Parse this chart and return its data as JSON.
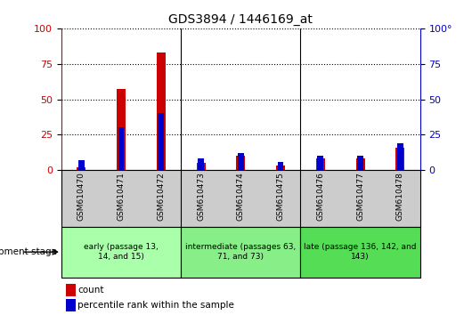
{
  "title": "GDS3894 / 1446169_at",
  "samples": [
    "GSM610470",
    "GSM610471",
    "GSM610472",
    "GSM610473",
    "GSM610474",
    "GSM610475",
    "GSM610476",
    "GSM610477",
    "GSM610478"
  ],
  "count_values": [
    2,
    57,
    83,
    5,
    10,
    3,
    8,
    8,
    16
  ],
  "percentile_values": [
    7,
    30,
    40,
    8,
    12,
    6,
    10,
    10,
    19
  ],
  "groups": [
    {
      "label": "early (passage 13,\n14, and 15)",
      "span": [
        0,
        2
      ],
      "color": "#aaffaa"
    },
    {
      "label": "intermediate (passages 63,\n71, and 73)",
      "span": [
        3,
        5
      ],
      "color": "#88ee88"
    },
    {
      "label": "late (passage 136, 142, and\n143)",
      "span": [
        6,
        8
      ],
      "color": "#55dd55"
    }
  ],
  "bar_color_count": "#cc0000",
  "bar_color_percentile": "#0000cc",
  "ylim": [
    0,
    100
  ],
  "yticks": [
    0,
    25,
    50,
    75,
    100
  ],
  "background_color": "#ffffff",
  "tick_label_area_color": "#cccccc",
  "dev_stage_label": "development stage",
  "legend_count": "count",
  "legend_percentile": "percentile rank within the sample",
  "bar_width": 0.15,
  "n_samples": 9,
  "group_boundaries": [
    2.5,
    5.5
  ]
}
